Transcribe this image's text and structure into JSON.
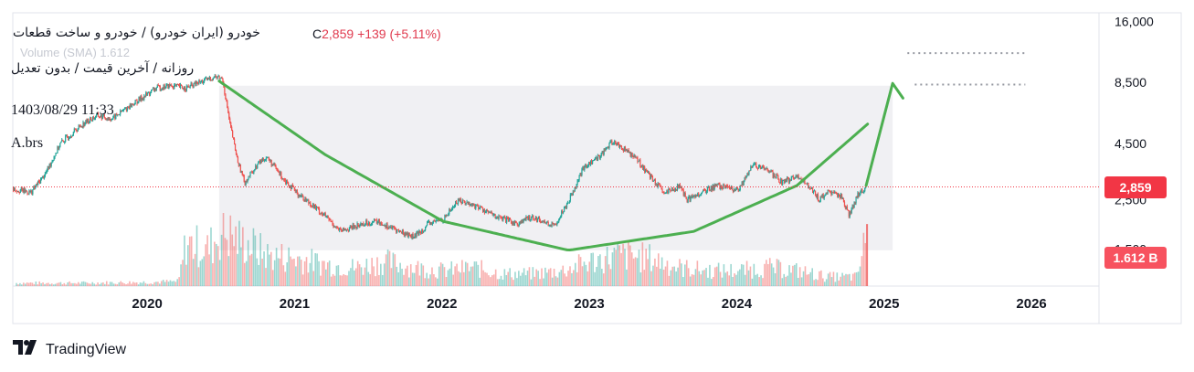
{
  "header": {
    "title": "خودرو (ایران خودرو) / خودرو و ساخت قطعات",
    "subtitle": "روزانه / آخرین قیمت / بدون تعدیل",
    "timestamp": "1403/08/29 11:33",
    "author": "A.brs",
    "volume_legend": "Volume (SMA)  1.612",
    "close_prefix": "C",
    "close_value": "2,859",
    "change": "+139 (+5.11%)"
  },
  "brand": {
    "name": "TradingView",
    "icon": "tradingview-logo-icon"
  },
  "colors": {
    "up": "#26a69a",
    "down": "#ef5350",
    "curve": "#4caf50",
    "badge": "#f23645",
    "shade": "#f0f0f3"
  },
  "chart_data": {
    "type": "line",
    "scale": "log",
    "title": "",
    "x_ticks": [
      "2020",
      "2021",
      "2022",
      "2023",
      "2024",
      "2025",
      "2026"
    ],
    "y_ticks": [
      "16,000",
      "8,500",
      "4,500",
      "2,500",
      "1,500"
    ],
    "ylim": [
      1100,
      17500
    ],
    "current_price": {
      "value": 2859,
      "label": "2,859"
    },
    "current_volume": {
      "label": "1.612 B"
    },
    "price_series": {
      "name": "",
      "x": [
        2019.08,
        2019.2,
        2019.3,
        2019.4,
        2019.55,
        2019.65,
        2019.75,
        2019.85,
        2019.95,
        2020.05,
        2020.15,
        2020.25,
        2020.35,
        2020.45,
        2020.5,
        2020.55,
        2020.6,
        2020.65,
        2020.75,
        2020.8,
        2020.9,
        2021.0,
        2021.1,
        2021.2,
        2021.3,
        2021.45,
        2021.55,
        2021.7,
        2021.8,
        2021.9,
        2022.0,
        2022.1,
        2022.25,
        2022.35,
        2022.5,
        2022.6,
        2022.75,
        2022.85,
        2022.95,
        2023.05,
        2023.15,
        2023.3,
        2023.4,
        2023.5,
        2023.6,
        2023.65,
        2023.75,
        2023.85,
        2024.0,
        2024.1,
        2024.2,
        2024.3,
        2024.4,
        2024.5,
        2024.55,
        2024.6,
        2024.7,
        2024.75,
        2024.82,
        2024.87
      ],
      "y": [
        2800,
        2700,
        3300,
        4500,
        5500,
        6000,
        5800,
        6500,
        7200,
        8000,
        8200,
        8000,
        8500,
        9000,
        8800,
        5500,
        3800,
        3000,
        3700,
        3900,
        3200,
        2700,
        2400,
        2100,
        1800,
        1950,
        2000,
        1800,
        1700,
        1950,
        2050,
        2500,
        2300,
        2100,
        1950,
        2100,
        1900,
        2500,
        3500,
        3900,
        4600,
        3900,
        3200,
        2650,
        2900,
        2500,
        2700,
        2900,
        2750,
        3600,
        3400,
        3000,
        3200,
        2800,
        2500,
        2700,
        2600,
        2150,
        2700,
        2859
      ]
    },
    "volume_series": {
      "name": "",
      "x": [
        2019.1,
        2019.5,
        2019.9,
        2020.2,
        2020.25,
        2020.4,
        2020.5,
        2020.6,
        2020.7,
        2020.8,
        2021.0,
        2021.2,
        2021.4,
        2021.6,
        2021.8,
        2022.0,
        2022.2,
        2022.4,
        2022.6,
        2022.8,
        2023.0,
        2023.2,
        2023.4,
        2023.6,
        2023.8,
        2024.0,
        2024.2,
        2024.4,
        2024.6,
        2024.8,
        2024.87
      ],
      "y": [
        0.1,
        0.1,
        0.12,
        0.15,
        1.4,
        1.2,
        1.8,
        1.5,
        1.3,
        1.0,
        0.9,
        0.7,
        0.6,
        0.8,
        0.6,
        0.5,
        0.6,
        0.4,
        0.4,
        0.5,
        0.8,
        1.0,
        0.9,
        0.6,
        0.5,
        0.5,
        0.6,
        0.5,
        0.3,
        0.3,
        1.612
      ]
    },
    "annotations": {
      "cup_curve": {
        "x": [
          2020.48,
          2021.2,
          2022.0,
          2022.85,
          2023.7,
          2024.4,
          2024.88
        ],
        "y": [
          8600,
          4000,
          2000,
          1480,
          1800,
          2900,
          5500
        ]
      },
      "breakout_arrow": {
        "x": [
          2024.87,
          2025.05,
          2025.12
        ],
        "y": [
          2900,
          8400,
          7200
        ]
      },
      "target_lines": [
        {
          "x": [
            2025.15,
            2025.95
          ],
          "y": 11500
        },
        {
          "x": [
            2025.2,
            2025.95
          ],
          "y": 8300
        }
      ],
      "shaded_zone": {
        "x": [
          2020.48,
          2025.05
        ],
        "y": [
          1480,
          8200
        ]
      }
    }
  }
}
